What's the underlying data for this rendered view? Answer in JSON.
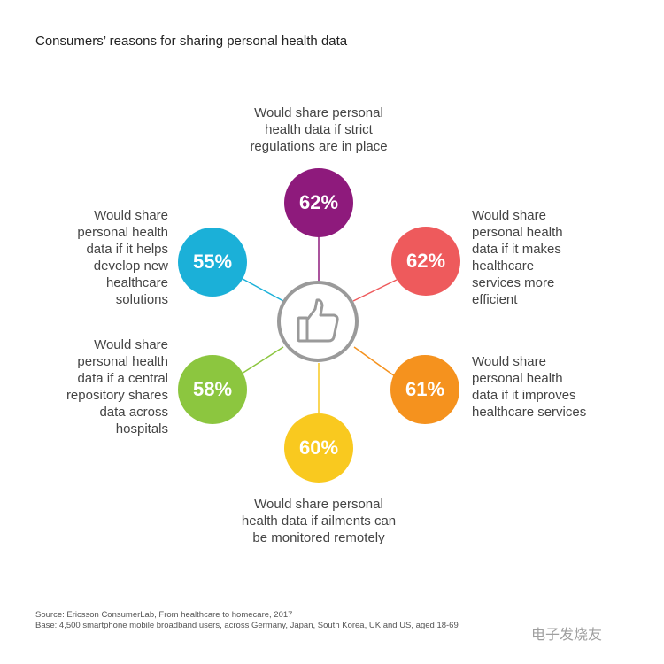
{
  "title": "Consumers’ reasons for sharing personal health data",
  "center_icon": "thumbs-up-icon",
  "reasons": [
    {
      "id": "regulations",
      "value": "62%",
      "color": "#8e1a7c",
      "lines": [
        "Would share personal",
        "health data if strict",
        "regulations are in place"
      ]
    },
    {
      "id": "healthcare-services-efficient",
      "value": "62%",
      "color": "#ee5a5c",
      "lines": [
        "Would share",
        "personal health",
        "data if it makes",
        "healthcare",
        "services more",
        "efficient"
      ]
    },
    {
      "id": "improves-healthcare-services",
      "value": "61%",
      "color": "#f5921e",
      "lines": [
        "Would share",
        "personal health",
        "data if it improves",
        "healthcare services"
      ]
    },
    {
      "id": "ailments-monitored",
      "value": "60%",
      "color": "#f9c91f",
      "lines": [
        "Would share personal",
        "health data if ailments can",
        "be monitored remotely"
      ]
    },
    {
      "id": "central-repository",
      "value": "58%",
      "color": "#8cc63f",
      "lines": [
        "Would share",
        "personal health",
        "data if a central",
        "repository shares",
        "data across",
        "hospitals"
      ]
    },
    {
      "id": "new-solutions",
      "value": "55%",
      "color": "#1bb0d8",
      "lines": [
        "Would share",
        "personal health",
        "data if it helps",
        "develop new",
        "healthcare",
        "solutions"
      ]
    }
  ],
  "footer": {
    "source": "Source: Ericsson ConsumerLab, From healthcare to homecare, 2017",
    "base": "Base: 4,500 smartphone mobile broadband users, across Germany, Japan, South Korea, UK and US, aged 18-69"
  },
  "watermark": "电子发烧友"
}
